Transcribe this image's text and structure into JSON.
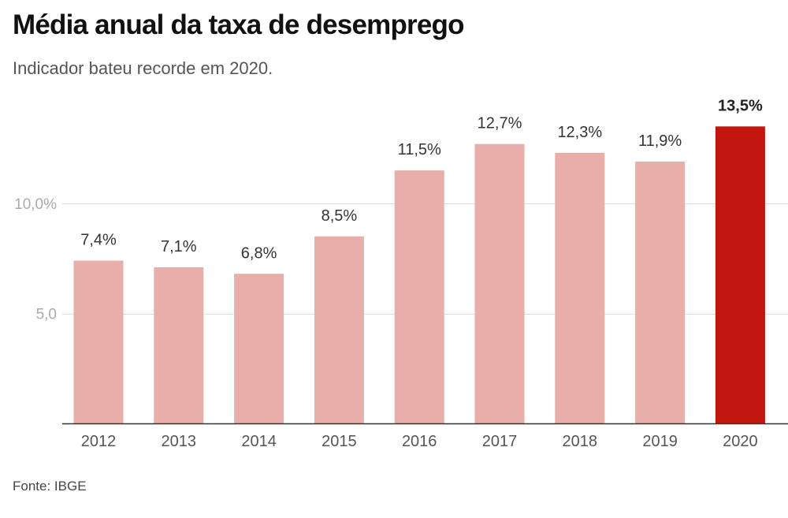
{
  "header": {
    "title": "Média anual da taxa de desemprego",
    "subtitle": "Indicador bateu recorde em 2020."
  },
  "footer": {
    "source": "Fonte: IBGE"
  },
  "colors": {
    "bar": "#e8aeaa",
    "highlight_bar": "#c0160e"
  },
  "chart_data": {
    "type": "bar",
    "title": "Média anual da taxa de desemprego",
    "subtitle": "Indicador bateu recorde em 2020.",
    "xlabel": "",
    "ylabel": "",
    "categories": [
      "2012",
      "2013",
      "2014",
      "2015",
      "2016",
      "2017",
      "2018",
      "2019",
      "2020"
    ],
    "values": [
      7.4,
      7.1,
      6.8,
      8.5,
      11.5,
      12.7,
      12.3,
      11.9,
      13.5
    ],
    "data_labels": [
      "7,4%",
      "7,1%",
      "6,8%",
      "8,5%",
      "11,5%",
      "12,7%",
      "12,3%",
      "11,9%",
      "13,5%"
    ],
    "highlight_index": 8,
    "ylim": [
      0,
      14
    ],
    "yticks": [
      5,
      10
    ],
    "ytick_labels": [
      "5,0",
      "10,0%"
    ],
    "grid": true
  }
}
